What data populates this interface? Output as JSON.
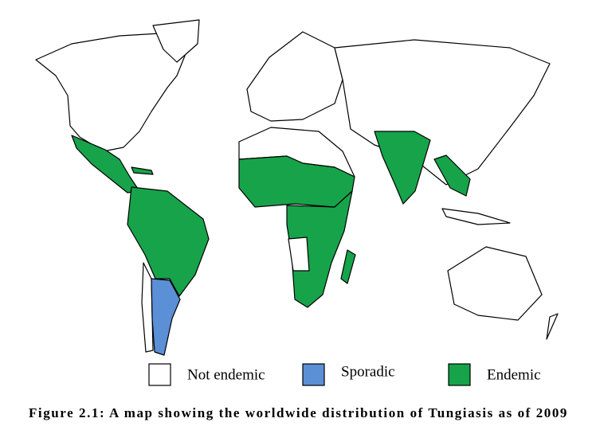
{
  "legend": [
    {
      "label": "Not endemic",
      "color": "#ffffff"
    },
    {
      "label": "Sporadic",
      "color": "#5b8fd6"
    },
    {
      "label": "Endemic",
      "color": "#17a34a"
    }
  ],
  "caption": "Figure 2.1: A map showing the worldwide distribution of Tungiasis as of 2009"
}
